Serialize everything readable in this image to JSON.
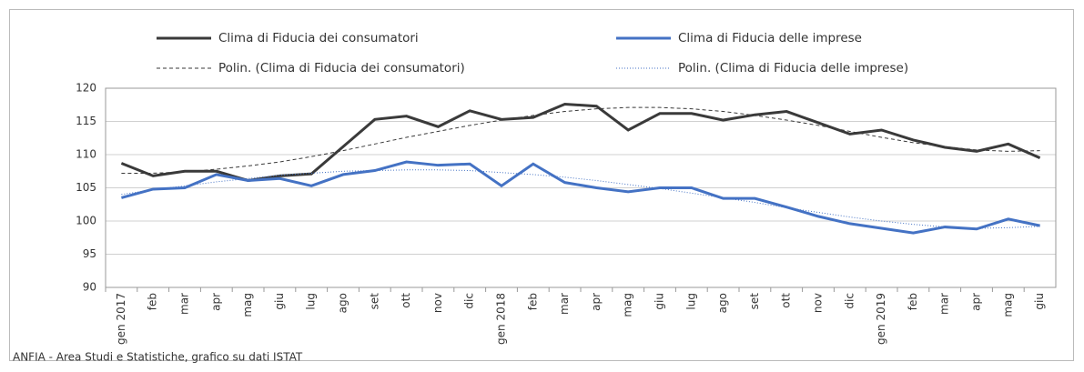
{
  "chart_data": {
    "type": "line",
    "categories": [
      "gen 2017",
      "feb",
      "mar",
      "apr",
      "mag",
      "giu",
      "lug",
      "ago",
      "set",
      "ott",
      "nov",
      "dic",
      "gen 2018",
      "feb",
      "mar",
      "apr",
      "mag",
      "giu",
      "lug",
      "ago",
      "set",
      "ott",
      "nov",
      "dic",
      "gen 2019",
      "feb",
      "mar",
      "apr",
      "mag",
      "giu"
    ],
    "series": [
      {
        "name": "Clima di Fiducia dei consumatori",
        "color": "#3a3a3a",
        "dash": "solid",
        "values": [
          108.7,
          106.8,
          107.5,
          107.5,
          106.1,
          106.8,
          107.1,
          111.2,
          115.3,
          115.8,
          114.2,
          116.6,
          115.3,
          115.6,
          117.6,
          117.3,
          113.7,
          116.2,
          116.2,
          115.2,
          116.0,
          116.5,
          114.8,
          113.1,
          113.7,
          112.2,
          111.1,
          110.5,
          111.6,
          109.5
        ]
      },
      {
        "name": "Clima di Fiducia delle imprese",
        "color": "#4472c4",
        "dash": "solid",
        "values": [
          103.5,
          104.8,
          105.0,
          107.0,
          106.1,
          106.4,
          105.3,
          107.0,
          107.6,
          108.9,
          108.4,
          108.6,
          105.3,
          108.6,
          105.8,
          105.0,
          104.4,
          105.0,
          105.0,
          103.4,
          103.4,
          102.1,
          100.7,
          99.6,
          98.9,
          98.2,
          99.1,
          98.8,
          100.3,
          99.3
        ]
      },
      {
        "name": "Polin. (Clima di Fiducia dei consumatori)",
        "color": "#3a3a3a",
        "dash": "dashed",
        "values": [
          107.2,
          107.2,
          107.4,
          107.8,
          108.3,
          108.9,
          109.7,
          110.6,
          111.6,
          112.6,
          113.5,
          114.4,
          115.2,
          115.9,
          116.5,
          116.9,
          117.1,
          117.1,
          116.9,
          116.5,
          115.9,
          115.2,
          114.4,
          113.5,
          112.6,
          111.8,
          111.2,
          110.7,
          110.5,
          110.6
        ]
      },
      {
        "name": "Polin. (Clima di Fiducia delle imprese)",
        "color": "#4472c4",
        "dash": "dotted",
        "values": [
          104.0,
          104.7,
          105.3,
          105.9,
          106.4,
          106.9,
          107.2,
          107.5,
          107.6,
          107.7,
          107.7,
          107.6,
          107.3,
          107.0,
          106.6,
          106.1,
          105.5,
          104.9,
          104.2,
          103.5,
          102.8,
          102.0,
          101.3,
          100.6,
          100.0,
          99.5,
          99.1,
          98.9,
          99.0,
          99.2
        ]
      }
    ],
    "ylim": [
      90,
      120
    ],
    "yticks": [
      90,
      95,
      100,
      105,
      110,
      115,
      120
    ],
    "grid": true,
    "source": "ANFIA - Area Studi e Statistiche, grafico su dati ISTAT"
  }
}
